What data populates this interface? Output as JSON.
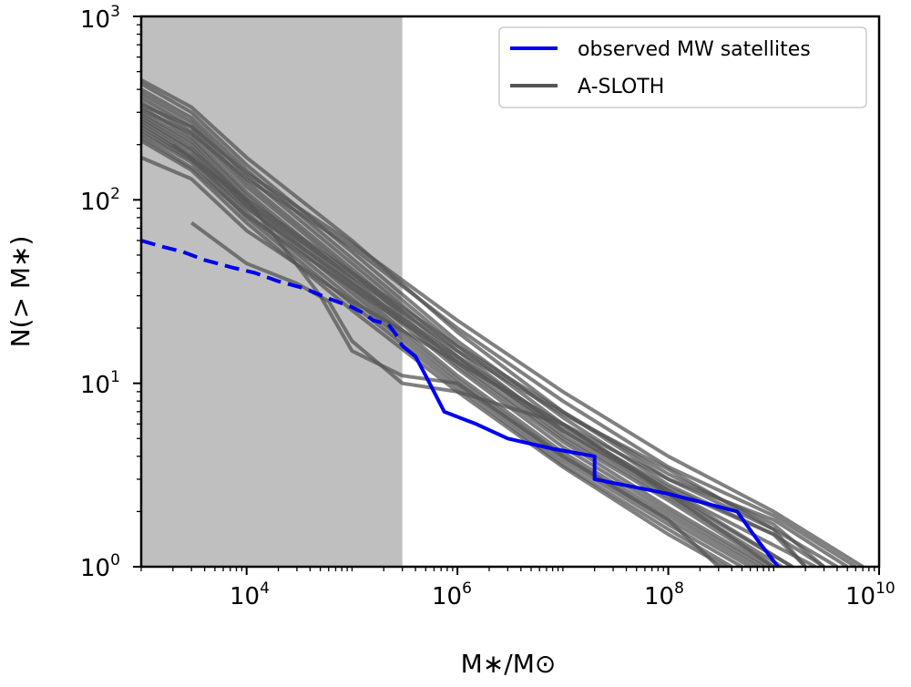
{
  "chart_data": {
    "type": "line",
    "xscale": "log",
    "yscale": "log",
    "xlim": [
      1000,
      10000000000
    ],
    "ylim": [
      1,
      1000
    ],
    "xlabel": "M∗/M⊙",
    "ylabel": "N(> M∗)",
    "x_tick_labels": [
      {
        "base": "10",
        "exp": "4",
        "value": 10000
      },
      {
        "base": "10",
        "exp": "6",
        "value": 1000000
      },
      {
        "base": "10",
        "exp": "8",
        "value": 100000000
      },
      {
        "base": "10",
        "exp": "10",
        "value": 10000000000
      }
    ],
    "y_tick_labels": [
      {
        "base": "10",
        "exp": "0",
        "value": 1
      },
      {
        "base": "10",
        "exp": "1",
        "value": 10
      },
      {
        "base": "10",
        "exp": "2",
        "value": 100
      },
      {
        "base": "10",
        "exp": "3",
        "value": 1000
      }
    ],
    "shaded_region": {
      "x0": 1000,
      "x1": 300000,
      "color": "#bfbfbf"
    },
    "legend": {
      "location": "top-right",
      "entries": [
        {
          "label": "observed MW satellites",
          "color": "#0000ee"
        },
        {
          "label": "A-SLOTH",
          "color": "#555555"
        }
      ]
    },
    "series": [
      {
        "name": "observed MW satellites",
        "color": "#0000ee",
        "segments": [
          {
            "style": "dashed",
            "points": [
              [
                1000,
                60
              ],
              [
                1500,
                56
              ],
              [
                2500,
                52
              ],
              [
                4000,
                47
              ],
              [
                7000,
                43
              ],
              [
                12000,
                40
              ],
              [
                20000,
                36
              ],
              [
                35000,
                33
              ],
              [
                60000,
                29
              ],
              [
                100000,
                26
              ],
              [
                130000,
                24
              ],
              [
                160000,
                22
              ],
              [
                220000,
                21
              ],
              [
                270000,
                18
              ],
              [
                300000,
                16
              ]
            ]
          },
          {
            "style": "solid",
            "points": [
              [
                300000,
                16
              ],
              [
                400000,
                14
              ],
              [
                500000,
                11
              ],
              [
                750000,
                7
              ],
              [
                1500000,
                6
              ],
              [
                3000000,
                5
              ],
              [
                8000000,
                4.4
              ],
              [
                20000000,
                4
              ],
              [
                20000000,
                3
              ],
              [
                100000000,
                2.5
              ],
              [
                450000000,
                2
              ],
              [
                700000000,
                1.4
              ],
              [
                1100000000,
                1
              ]
            ]
          }
        ]
      },
      {
        "name": "A-SLOTH",
        "color": "#555555",
        "realizations": [
          {
            "points": [
              [
                1000,
                450
              ],
              [
                3000,
                320
              ],
              [
                10000,
                170
              ],
              [
                100000,
                60
              ],
              [
                1000000,
                19
              ],
              [
                10000000,
                7
              ],
              [
                100000000,
                3
              ],
              [
                1000000000,
                1.6
              ],
              [
                4000000000,
                1
              ]
            ]
          },
          {
            "points": [
              [
                1000,
                430
              ],
              [
                3000,
                300
              ],
              [
                10000,
                155
              ],
              [
                100000,
                52
              ],
              [
                1000000,
                17
              ],
              [
                10000000,
                6.5
              ],
              [
                100000000,
                2.8
              ],
              [
                1000000000,
                1.5
              ],
              [
                3000000000,
                1
              ]
            ]
          },
          {
            "points": [
              [
                1000,
                400
              ],
              [
                3000,
                280
              ],
              [
                10000,
                145
              ],
              [
                100000,
                48
              ],
              [
                1000000,
                16
              ],
              [
                10000000,
                6
              ],
              [
                100000000,
                2.6
              ],
              [
                800000000,
                1.4
              ],
              [
                2500000000,
                1
              ]
            ]
          },
          {
            "points": [
              [
                1000,
                380
              ],
              [
                3000,
                265
              ],
              [
                10000,
                135
              ],
              [
                100000,
                45
              ],
              [
                1000000,
                15
              ],
              [
                10000000,
                5.5
              ],
              [
                100000000,
                2.5
              ],
              [
                1500000000,
                1
              ]
            ]
          },
          {
            "points": [
              [
                1000,
                360
              ],
              [
                3000,
                250
              ],
              [
                10000,
                125
              ],
              [
                100000,
                42
              ],
              [
                1000000,
                14
              ],
              [
                10000000,
                5.2
              ],
              [
                100000000,
                2.4
              ],
              [
                1200000000,
                1
              ]
            ]
          },
          {
            "points": [
              [
                1000,
                340
              ],
              [
                3000,
                235
              ],
              [
                10000,
                118
              ],
              [
                100000,
                40
              ],
              [
                1000000,
                13
              ],
              [
                10000000,
                5
              ],
              [
                100000000,
                2.3
              ],
              [
                1000000000,
                1
              ]
            ]
          },
          {
            "points": [
              [
                1000,
                320
              ],
              [
                3000,
                220
              ],
              [
                10000,
                110
              ],
              [
                100000,
                37
              ],
              [
                1000000,
                12.5
              ],
              [
                10000000,
                4.8
              ],
              [
                100000000,
                2.1
              ],
              [
                900000000,
                1
              ]
            ]
          },
          {
            "points": [
              [
                1000,
                300
              ],
              [
                3000,
                210
              ],
              [
                10000,
                105
              ],
              [
                100000,
                35
              ],
              [
                1000000,
                12
              ],
              [
                10000000,
                4.5
              ],
              [
                100000000,
                2
              ],
              [
                800000000,
                1
              ]
            ]
          },
          {
            "points": [
              [
                1000,
                290
              ],
              [
                3000,
                200
              ],
              [
                10000,
                98
              ],
              [
                100000,
                33
              ],
              [
                1000000,
                11
              ],
              [
                10000000,
                4.2
              ],
              [
                100000000,
                1.9
              ],
              [
                700000000,
                1
              ]
            ]
          },
          {
            "points": [
              [
                1000,
                270
              ],
              [
                3000,
                185
              ],
              [
                10000,
                92
              ],
              [
                100000,
                31
              ],
              [
                1000000,
                10.5
              ],
              [
                10000000,
                4
              ],
              [
                100000000,
                1.8
              ],
              [
                600000000,
                1
              ]
            ]
          },
          {
            "points": [
              [
                1000,
                250
              ],
              [
                3000,
                170
              ],
              [
                10000,
                85
              ],
              [
                100000,
                29
              ],
              [
                1000000,
                10
              ],
              [
                10000000,
                3.8
              ],
              [
                100000000,
                1.7
              ],
              [
                500000000,
                1
              ]
            ]
          },
          {
            "points": [
              [
                1000,
                230
              ],
              [
                3000,
                160
              ],
              [
                10000,
                80
              ],
              [
                100000,
                27
              ],
              [
                1000000,
                9.5
              ],
              [
                10000000,
                3.6
              ],
              [
                100000000,
                1.6
              ],
              [
                400000000,
                1
              ]
            ]
          },
          {
            "points": [
              [
                1000,
                210
              ],
              [
                3000,
                145
              ],
              [
                10000,
                75
              ],
              [
                100000,
                25
              ],
              [
                1000000,
                9
              ],
              [
                10000000,
                3.5
              ],
              [
                100000000,
                1.5
              ],
              [
                350000000,
                1
              ]
            ]
          },
          {
            "points": [
              [
                1000,
                170
              ],
              [
                3000,
                130
              ],
              [
                10000,
                68
              ],
              [
                100000,
                28
              ],
              [
                1000000,
                13
              ],
              [
                10000000,
                6
              ],
              [
                100000000,
                3
              ],
              [
                1000000000,
                1.8
              ],
              [
                5000000000,
                1
              ]
            ]
          },
          {
            "points": [
              [
                1000,
                330
              ],
              [
                3000,
                250
              ],
              [
                10000,
                140
              ],
              [
                100000,
                58
              ],
              [
                1000000,
                22
              ],
              [
                10000000,
                9
              ],
              [
                100000000,
                4
              ],
              [
                1000000000,
                2
              ],
              [
                7000000000,
                1
              ]
            ]
          },
          {
            "points": [
              [
                1000,
                310
              ],
              [
                3000,
                230
              ],
              [
                10000,
                130
              ],
              [
                100000,
                55
              ],
              [
                1000000,
                20
              ],
              [
                10000000,
                8
              ],
              [
                100000000,
                3.5
              ],
              [
                1000000000,
                1.9
              ],
              [
                6000000000,
                1
              ]
            ]
          },
          {
            "points": [
              [
                1000,
                280
              ],
              [
                3000,
                190
              ],
              [
                10000,
                100
              ],
              [
                100000,
                40
              ],
              [
                1000000,
                16
              ],
              [
                10000000,
                7
              ],
              [
                100000000,
                3.2
              ],
              [
                1000000000,
                1.7
              ],
              [
                3000000000,
                1
              ]
            ]
          },
          {
            "points": [
              [
                1000,
                260
              ],
              [
                3000,
                175
              ],
              [
                10000,
                95
              ],
              [
                100000,
                38
              ],
              [
                1000000,
                15
              ],
              [
                10000000,
                6.8
              ],
              [
                100000000,
                3.4
              ],
              [
                1000000000,
                1.6
              ],
              [
                2000000000,
                1
              ]
            ]
          },
          {
            "points": [
              [
                3000,
                75
              ],
              [
                10000,
                45
              ],
              [
                30000,
                35
              ],
              [
                60000,
                28
              ],
              [
                100000,
                17
              ],
              [
                300000,
                10
              ],
              [
                1000000,
                9
              ],
              [
                10000000,
                6
              ],
              [
                100000000,
                2.5
              ],
              [
                1000000000,
                1
              ]
            ]
          },
          {
            "points": [
              [
                2000,
                200
              ],
              [
                10000,
                100
              ],
              [
                20000,
                60
              ],
              [
                50000,
                30
              ],
              [
                100000,
                15
              ],
              [
                300000,
                11
              ],
              [
                1000000,
                10
              ],
              [
                10000000,
                4
              ],
              [
                100000000,
                1.8
              ],
              [
                300000000,
                1
              ]
            ]
          },
          {
            "points": [
              [
                1000,
                240
              ],
              [
                3000,
                165
              ],
              [
                10000,
                90
              ],
              [
                100000,
                35
              ],
              [
                1000000,
                14
              ],
              [
                10000000,
                5.8
              ],
              [
                100000000,
                2.7
              ],
              [
                1000000000,
                1.5
              ],
              [
                2000000000,
                1
              ]
            ]
          },
          {
            "points": [
              [
                1000,
                220
              ],
              [
                3000,
                150
              ],
              [
                10000,
                82
              ],
              [
                100000,
                33
              ],
              [
                1000000,
                13.5
              ],
              [
                10000000,
                5.5
              ],
              [
                100000000,
                2.6
              ],
              [
                1500000000,
                1
              ]
            ]
          }
        ]
      }
    ]
  }
}
